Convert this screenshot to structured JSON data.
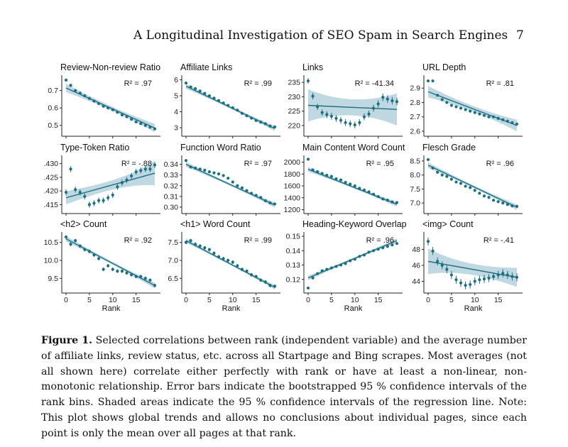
{
  "header": {
    "title": "A Longitudinal Investigation of SEO Spam in Search Engines",
    "page_number": "7"
  },
  "caption": {
    "label": "Figure 1.",
    "text": "Selected correlations between rank (independent variable) and the average number of affiliate links, review status, etc. across all Startpage and Bing scrapes. Most averages (not all shown here) correlate either perfectly with rank or have at least a non-linear, non-monotonic relationship. Error bars indicate the bootstrapped 95 % confidence intervals of the rank bins. Shaded areas indicate the 95 % confidence intervals of the regression line. Note: This plot shows global trends and allows no conclusions about individual pages, since each point is only the mean over all pages at that rank."
  },
  "colors": {
    "point": "#1d6f80",
    "line": "#1d6f80",
    "band": "#a9cbd8",
    "axis": "#222222"
  },
  "chart_data": [
    {
      "type": "scatter",
      "title": "Review-Non-review Ratio",
      "r2": "R² = .97",
      "ylim": [
        0.45,
        0.78
      ],
      "yticks": [
        0.5,
        0.6,
        0.7
      ],
      "ytick_labels": [
        "0.5",
        "0.6",
        "0.7"
      ],
      "xlabel": "",
      "xticks": [
        0,
        5,
        10,
        15
      ],
      "fit": [
        0.715,
        0.485
      ],
      "band": [
        0.012,
        0.012
      ],
      "x": [
        0,
        1,
        2,
        3,
        4,
        5,
        6,
        7,
        8,
        9,
        10,
        11,
        12,
        13,
        14,
        15,
        16,
        17,
        18,
        19
      ],
      "y": [
        0.76,
        0.73,
        0.7,
        0.685,
        0.67,
        0.655,
        0.64,
        0.625,
        0.61,
        0.6,
        0.59,
        0.575,
        0.56,
        0.55,
        0.535,
        0.52,
        0.51,
        0.5,
        0.49,
        0.48
      ],
      "err": [
        0.008,
        0.008,
        0.007,
        0.007,
        0.007,
        0.007,
        0.007,
        0.007,
        0.007,
        0.007,
        0.007,
        0.007,
        0.007,
        0.007,
        0.007,
        0.007,
        0.007,
        0.007,
        0.007,
        0.007
      ]
    },
    {
      "type": "scatter",
      "title": "Affiliate Links",
      "r2": "R² = .99",
      "ylim": [
        2.6,
        6.2
      ],
      "yticks": [
        3,
        4,
        5,
        6
      ],
      "ytick_labels": [
        "3",
        "4",
        "5",
        "6"
      ],
      "xlabel": "",
      "xticks": [
        0,
        5,
        10,
        15
      ],
      "fit": [
        5.6,
        2.95
      ],
      "band": [
        0.08,
        0.08
      ],
      "x": [
        0,
        1,
        2,
        3,
        4,
        5,
        6,
        7,
        8,
        9,
        10,
        11,
        12,
        13,
        14,
        15,
        16,
        17,
        18,
        19
      ],
      "y": [
        5.8,
        5.55,
        5.45,
        5.3,
        5.15,
        5.0,
        4.85,
        4.7,
        4.55,
        4.4,
        4.25,
        4.1,
        3.9,
        3.75,
        3.6,
        3.45,
        3.35,
        3.25,
        3.1,
        3.05
      ],
      "err": [
        0.08,
        0.07,
        0.07,
        0.07,
        0.07,
        0.07,
        0.07,
        0.07,
        0.07,
        0.07,
        0.07,
        0.07,
        0.07,
        0.07,
        0.07,
        0.07,
        0.07,
        0.07,
        0.07,
        0.07
      ]
    },
    {
      "type": "scatter",
      "title": "Links",
      "r2": "R² = -41.34",
      "ylim": [
        217,
        237
      ],
      "yticks": [
        220,
        225,
        230,
        235
      ],
      "ytick_labels": [
        "220",
        "225",
        "230",
        "235"
      ],
      "xlabel": "",
      "xticks": [
        0,
        5,
        10,
        15
      ],
      "fit": [
        227.0,
        225.6
      ],
      "band": [
        2.8,
        2.8
      ],
      "x": [
        0,
        1,
        2,
        3,
        4,
        5,
        6,
        7,
        8,
        9,
        10,
        11,
        12,
        13,
        14,
        15,
        16,
        17,
        18,
        19
      ],
      "y": [
        235.5,
        230.2,
        226.5,
        224.5,
        223.8,
        223.2,
        222.5,
        221.8,
        221.0,
        220.6,
        220.2,
        221.0,
        223.0,
        224.0,
        226.0,
        227.5,
        229.8,
        229.2,
        228.6,
        228.3
      ],
      "err": [
        1.0,
        1.1,
        1.1,
        1.1,
        1.2,
        1.2,
        1.2,
        1.2,
        1.2,
        1.2,
        1.2,
        1.2,
        1.2,
        1.2,
        1.2,
        1.3,
        1.3,
        1.3,
        1.3,
        1.3
      ]
    },
    {
      "type": "scatter",
      "title": "URL Depth",
      "r2": "R² = .81",
      "ylim": [
        2.58,
        2.98
      ],
      "yticks": [
        2.6,
        2.7,
        2.8,
        2.9
      ],
      "ytick_labels": [
        "2.6",
        "2.7",
        "2.8",
        "2.9"
      ],
      "xlabel": "",
      "xticks": [
        0,
        5,
        10,
        15
      ],
      "fit": [
        2.875,
        2.64
      ],
      "band": [
        0.02,
        0.02
      ],
      "x": [
        0,
        1,
        2,
        3,
        4,
        5,
        6,
        7,
        8,
        9,
        10,
        11,
        12,
        13,
        14,
        15,
        16,
        17,
        18,
        19
      ],
      "y": [
        2.95,
        2.95,
        2.85,
        2.82,
        2.8,
        2.78,
        2.77,
        2.76,
        2.75,
        2.74,
        2.73,
        2.72,
        2.71,
        2.7,
        2.7,
        2.69,
        2.68,
        2.67,
        2.66,
        2.65
      ],
      "err": [
        0.005,
        0.005,
        0.005,
        0.005,
        0.005,
        0.005,
        0.005,
        0.005,
        0.005,
        0.005,
        0.005,
        0.005,
        0.005,
        0.005,
        0.005,
        0.005,
        0.005,
        0.005,
        0.005,
        0.005
      ]
    },
    {
      "type": "scatter",
      "title": "Type-Token Ratio",
      "r2": "R² = -.88",
      "ylim": [
        0.4125,
        0.4325
      ],
      "yticks": [
        0.415,
        0.42,
        0.425,
        0.43
      ],
      "ytick_labels": [
        ".415",
        ".420",
        ".425",
        ".430"
      ],
      "xlabel": "",
      "xticks": [
        0,
        5,
        10,
        15
      ],
      "fit": [
        0.4175,
        0.4265
      ],
      "band": [
        0.0012,
        0.0022
      ],
      "x": [
        0,
        1,
        2,
        3,
        4,
        5,
        6,
        7,
        8,
        9,
        10,
        11,
        12,
        13,
        14,
        15,
        16,
        17,
        18,
        19
      ],
      "y": [
        0.4195,
        0.428,
        0.4205,
        0.4195,
        0.418,
        0.415,
        0.4155,
        0.4165,
        0.4165,
        0.4175,
        0.4185,
        0.4215,
        0.423,
        0.424,
        0.4255,
        0.427,
        0.4275,
        0.428,
        0.428,
        0.4295
      ],
      "err": [
        0.0011,
        0.0011,
        0.0011,
        0.0011,
        0.0011,
        0.0011,
        0.0011,
        0.0011,
        0.0011,
        0.0011,
        0.0011,
        0.0011,
        0.0011,
        0.0011,
        0.0011,
        0.0011,
        0.0011,
        0.0011,
        0.0011,
        0.0011
      ]
    },
    {
      "type": "scatter",
      "title": "Function Word Ratio",
      "r2": "R² = .97",
      "ylim": [
        0.296,
        0.347
      ],
      "yticks": [
        0.3,
        0.31,
        0.32,
        0.33,
        0.34
      ],
      "ytick_labels": [
        "0.30",
        "0.31",
        "0.32",
        "0.33",
        "0.34"
      ],
      "xlabel": "",
      "xticks": [
        0,
        5,
        10,
        15
      ],
      "fit": [
        0.34,
        0.302
      ],
      "band": [
        0.0012,
        0.0012
      ],
      "x": [
        0,
        1,
        2,
        3,
        4,
        5,
        6,
        7,
        8,
        9,
        10,
        11,
        12,
        13,
        14,
        15,
        16,
        17,
        18,
        19
      ],
      "y": [
        0.3435,
        0.3375,
        0.3365,
        0.3355,
        0.3345,
        0.333,
        0.332,
        0.331,
        0.3295,
        0.327,
        0.3235,
        0.32,
        0.318,
        0.3155,
        0.313,
        0.311,
        0.309,
        0.306,
        0.304,
        0.303
      ],
      "err": [
        0.0005,
        0.0005,
        0.0005,
        0.0005,
        0.0005,
        0.0005,
        0.0005,
        0.0005,
        0.0005,
        0.0005,
        0.0005,
        0.0005,
        0.0005,
        0.0005,
        0.0005,
        0.0005,
        0.0005,
        0.0005,
        0.0005,
        0.0005
      ]
    },
    {
      "type": "scatter",
      "title": "Main Content Word Count",
      "r2": "R² = .95",
      "ylim": [
        1170,
        2090
      ],
      "yticks": [
        1200,
        1400,
        1600,
        1800,
        2000
      ],
      "ytick_labels": [
        "1200",
        "1400",
        "1600",
        "1800",
        "2000"
      ],
      "xlabel": "",
      "xticks": [
        0,
        5,
        10,
        15
      ],
      "fit": [
        1880,
        1290
      ],
      "band": [
        20,
        20
      ],
      "x": [
        0,
        1,
        2,
        3,
        4,
        5,
        6,
        7,
        8,
        9,
        10,
        11,
        12,
        13,
        14,
        15,
        16,
        17,
        18,
        19
      ],
      "y": [
        2050,
        1870,
        1840,
        1810,
        1780,
        1760,
        1720,
        1700,
        1660,
        1630,
        1600,
        1560,
        1530,
        1500,
        1460,
        1420,
        1380,
        1360,
        1330,
        1320
      ],
      "err": [
        10,
        10,
        10,
        10,
        10,
        10,
        10,
        10,
        10,
        10,
        10,
        10,
        10,
        10,
        10,
        10,
        10,
        10,
        10,
        10
      ]
    },
    {
      "type": "scatter",
      "title": "Flesch Grade",
      "r2": "R² = .96",
      "ylim": [
        6.7,
        8.65
      ],
      "yticks": [
        7.0,
        7.5,
        8.0,
        8.5
      ],
      "ytick_labels": [
        "7.0",
        "7.5",
        "8.0",
        "8.5"
      ],
      "xlabel": "",
      "xticks": [
        0,
        5,
        10,
        15
      ],
      "fit": [
        8.35,
        6.85
      ],
      "band": [
        0.05,
        0.05
      ],
      "x": [
        0,
        1,
        2,
        3,
        4,
        5,
        6,
        7,
        8,
        9,
        10,
        11,
        12,
        13,
        14,
        15,
        16,
        17,
        18,
        19
      ],
      "y": [
        8.55,
        8.25,
        8.1,
        8.0,
        7.95,
        7.85,
        7.75,
        7.7,
        7.6,
        7.55,
        7.45,
        7.35,
        7.25,
        7.2,
        7.1,
        7.05,
        7.0,
        6.95,
        6.9,
        6.88
      ],
      "err": [
        0.04,
        0.04,
        0.04,
        0.04,
        0.04,
        0.04,
        0.04,
        0.04,
        0.04,
        0.04,
        0.04,
        0.04,
        0.04,
        0.04,
        0.04,
        0.04,
        0.04,
        0.04,
        0.04,
        0.04
      ]
    },
    {
      "type": "scatter",
      "title": "<h2> Count",
      "r2": "R² = .92",
      "ylim": [
        9.15,
        10.75
      ],
      "yticks": [
        9.5,
        10.0,
        10.5
      ],
      "ytick_labels": [
        "9.5",
        "10.0",
        "10.5"
      ],
      "xlabel": "Rank",
      "xticks": [
        0,
        5,
        10,
        15
      ],
      "fit": [
        10.6,
        9.3
      ],
      "band": [
        0.04,
        0.04
      ],
      "x": [
        0,
        1,
        2,
        3,
        4,
        5,
        6,
        7,
        8,
        9,
        10,
        11,
        12,
        13,
        14,
        15,
        16,
        17,
        18,
        19
      ],
      "y": [
        10.65,
        10.45,
        10.55,
        10.4,
        10.3,
        10.25,
        10.15,
        10.05,
        9.75,
        9.85,
        9.75,
        9.7,
        9.7,
        9.65,
        9.6,
        9.55,
        9.55,
        9.5,
        9.45,
        9.3
      ],
      "err": [
        0.05,
        0.06,
        0.05,
        0.05,
        0.05,
        0.06,
        0.05,
        0.05,
        0.05,
        0.05,
        0.05,
        0.05,
        0.05,
        0.05,
        0.05,
        0.05,
        0.05,
        0.05,
        0.05,
        0.05
      ]
    },
    {
      "type": "scatter",
      "title": "<h1> Word Count",
      "r2": "R² = .99",
      "ylim": [
        6.15,
        7.75
      ],
      "yticks": [
        6.5,
        7.0,
        7.5
      ],
      "ytick_labels": [
        "6.5",
        "7.0",
        "7.5"
      ],
      "xlabel": "Rank",
      "xticks": [
        0,
        5,
        10,
        15
      ],
      "fit": [
        7.55,
        6.25
      ],
      "band": [
        0.03,
        0.03
      ],
      "x": [
        0,
        1,
        2,
        3,
        4,
        5,
        6,
        7,
        8,
        9,
        10,
        11,
        12,
        13,
        14,
        15,
        16,
        17,
        18,
        19
      ],
      "y": [
        7.5,
        7.55,
        7.45,
        7.4,
        7.35,
        7.3,
        7.2,
        7.1,
        7.05,
        7.0,
        6.95,
        6.85,
        6.75,
        6.7,
        6.6,
        6.55,
        6.45,
        6.4,
        6.3,
        6.28
      ],
      "err": [
        0.05,
        0.05,
        0.05,
        0.05,
        0.05,
        0.05,
        0.05,
        0.05,
        0.05,
        0.05,
        0.05,
        0.05,
        0.05,
        0.05,
        0.05,
        0.05,
        0.05,
        0.05,
        0.05,
        0.05
      ]
    },
    {
      "type": "scatter",
      "title": "Heading-Keyword Overlap",
      "r2": "R² = .96",
      "ylim": [
        0.112,
        0.152
      ],
      "yticks": [
        0.12,
        0.13,
        0.14,
        0.15
      ],
      "ytick_labels": [
        "0.12",
        "0.13",
        "0.14",
        "0.15"
      ],
      "xlabel": "Rank",
      "xticks": [
        0,
        5,
        10,
        15
      ],
      "fit": [
        0.121,
        0.147
      ],
      "band": [
        0.0008,
        0.0008
      ],
      "x": [
        0,
        1,
        2,
        3,
        4,
        5,
        6,
        7,
        8,
        9,
        10,
        11,
        12,
        13,
        14,
        15,
        16,
        17,
        18,
        19
      ],
      "y": [
        0.114,
        0.121,
        0.124,
        0.126,
        0.127,
        0.128,
        0.129,
        0.13,
        0.131,
        0.133,
        0.134,
        0.136,
        0.137,
        0.139,
        0.14,
        0.141,
        0.142,
        0.143,
        0.144,
        0.145
      ],
      "err": [
        0.0005,
        0.0005,
        0.0005,
        0.0005,
        0.0005,
        0.0005,
        0.0005,
        0.0005,
        0.0005,
        0.0005,
        0.0005,
        0.0005,
        0.0005,
        0.0005,
        0.0005,
        0.0005,
        0.0005,
        0.0005,
        0.0005,
        0.0005
      ]
    },
    {
      "type": "scatter",
      "title": "<img> Count",
      "r2": "R² = -.41",
      "ylim": [
        42.8,
        50.0
      ],
      "yticks": [
        44,
        46,
        48
      ],
      "ytick_labels": [
        "44",
        "46",
        "48"
      ],
      "xlabel": "Rank",
      "xticks": [
        0,
        5,
        10,
        15
      ],
      "fit": [
        46.5,
        44.5
      ],
      "band": [
        0.8,
        0.6
      ],
      "x": [
        0,
        1,
        2,
        3,
        4,
        5,
        6,
        7,
        8,
        9,
        10,
        11,
        12,
        13,
        14,
        15,
        16,
        17,
        18,
        19
      ],
      "y": [
        49.0,
        47.8,
        46.5,
        46.0,
        45.5,
        44.8,
        44.2,
        43.8,
        43.5,
        43.6,
        44.0,
        44.2,
        44.3,
        44.4,
        44.6,
        44.8,
        45.0,
        44.8,
        44.6,
        44.5
      ],
      "err": [
        0.5,
        0.5,
        0.5,
        0.5,
        0.5,
        0.5,
        0.5,
        0.5,
        0.5,
        0.5,
        0.5,
        0.5,
        0.5,
        0.5,
        0.5,
        0.5,
        0.5,
        0.5,
        0.5,
        0.5
      ]
    }
  ]
}
